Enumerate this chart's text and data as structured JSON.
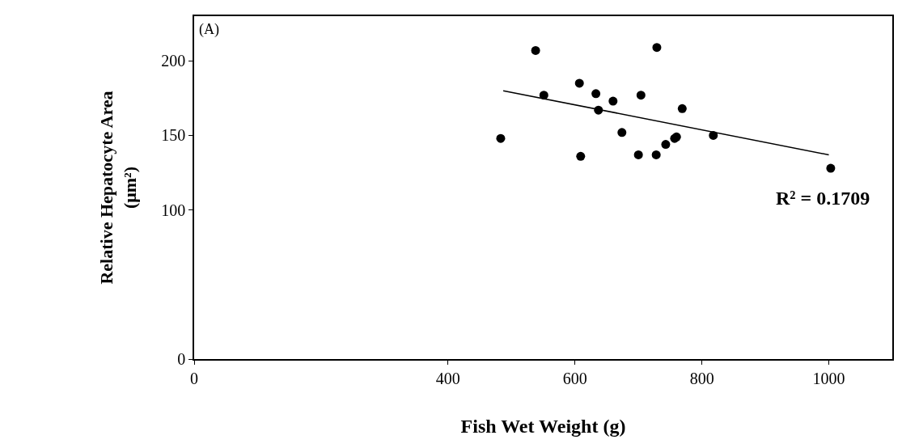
{
  "chart_data": {
    "type": "scatter",
    "xlabel": "Fish Wet Weight (g)",
    "ylabel": "Relative Hepatocyte Area\n(μm²)",
    "annotations": [
      "(A)",
      "R² = 0.1709"
    ],
    "xlim": [
      0,
      1100
    ],
    "xticks": [
      0,
      400,
      600,
      800,
      1000
    ],
    "ylim": [
      0,
      230
    ],
    "yticks": [
      0,
      100,
      150,
      200
    ],
    "grid": false,
    "legend": false,
    "marker": "circle",
    "series": [
      {
        "color": "#000000",
        "x": [
          483,
          538,
          551,
          607,
          609,
          633,
          637,
          660,
          674,
          704,
          700,
          729,
          728,
          743,
          757,
          760,
          769,
          818,
          1003
        ],
        "values": [
          148,
          207,
          177,
          185,
          136,
          178,
          167,
          173,
          152,
          177,
          137,
          209,
          137,
          144,
          148,
          149,
          168,
          150,
          128
        ]
      },
      {
        "type": "line",
        "color": "#000000",
        "line_style": "solid",
        "marker": "none",
        "x": [
          487,
          1000
        ],
        "values": [
          180,
          137
        ]
      }
    ]
  }
}
